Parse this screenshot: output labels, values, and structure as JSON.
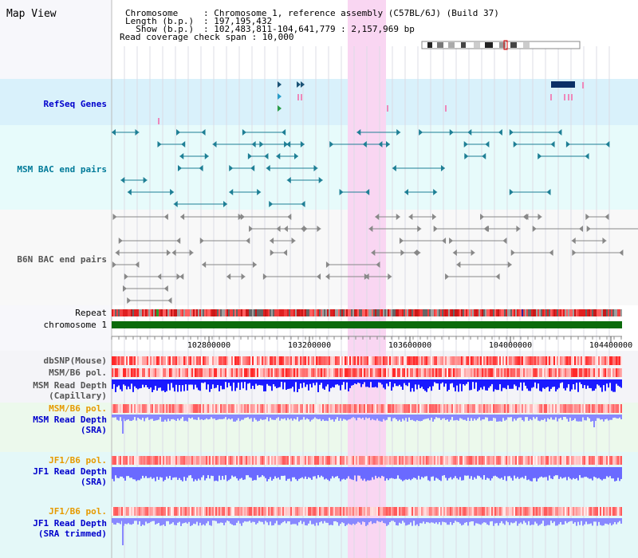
{
  "page_title": "Map View",
  "info": {
    "chromosome_key": "Chromosome",
    "chromosome_val": ": Chromosome 1, reference assembly (C57BL/6J) (Build 37)",
    "length_key": "Length (b.p.)",
    "length_val": ": 197,195,432",
    "show_key": "  Show (b.p.)",
    "show_val": ": 102,483,811-104,641,779 : 2,157,969 bp",
    "coverage": "Read coverage check span : 10,000"
  },
  "tracks": {
    "refseq": "RefSeq Genes",
    "msm_bac": "MSM BAC end pairs",
    "b6n_bac": "B6N BAC end pairs",
    "repeat": "Repeat",
    "chromosome": "chromosome 1",
    "dbsnp": "dbSNP(Mouse)",
    "msm_b6_pol_1": "MSM/B6 pol.",
    "msm_depth_cap_1": "MSM Read Depth",
    "msm_depth_cap_2": "(Capillary)",
    "msm_b6_pol_2": "MSM/B6 pol.",
    "msm_depth_sra_1": "MSM Read Depth",
    "msm_depth_sra_2": "(SRA)",
    "jf1_b6_pol_1": "JF1/B6 pol.",
    "jf1_depth_sra_1": "JF1 Read Depth",
    "jf1_depth_sra_2": "(SRA)",
    "jf1_b6_pol_2": "JF1/B6 pol.",
    "jf1_depth_trim_1": "JF1 Read Depth",
    "jf1_depth_trim_2": "(SRA trimmed)"
  },
  "axis_ticks": [
    "102800000",
    "103200000",
    "103600000",
    "104000000",
    "104400000"
  ],
  "colors": {
    "refseq_bg": "#d9f1fb",
    "msm_bg": "#e7fbfb",
    "b6n_bg": "#f8f8f8",
    "highlight": "#f9d6f2",
    "label_blue": "#0000cc",
    "label_teal": "#007a99",
    "label_orange": "#e69a00",
    "chromosome_green": "#0b6b0b"
  }
}
